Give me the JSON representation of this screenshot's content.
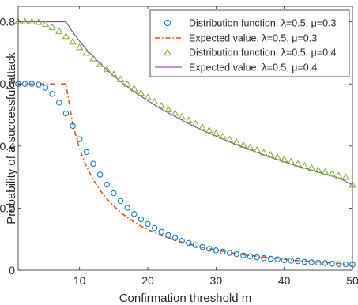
{
  "chart_data": {
    "type": "line",
    "title": "",
    "xlabel": "Confirmation threshold m",
    "ylabel": "Probability of a successful attack",
    "xlim": [
      1,
      50
    ],
    "ylim": [
      0,
      0.85
    ],
    "xticks": [
      10,
      20,
      30,
      40,
      50
    ],
    "yticks": [
      0,
      0.2,
      0.4,
      0.6,
      0.8
    ],
    "xtick_labels": [
      "10",
      "20",
      "30",
      "40",
      "50"
    ],
    "ytick_labels": [
      "0",
      "0.2",
      "0.4",
      "0.6",
      "0.8"
    ],
    "grid": false,
    "legend_position": "top-right",
    "colors": {
      "circle_series": "#0072BD",
      "dashed_series": "#D95319",
      "triangle_series": "#77AC30",
      "purple_series": "#7E2F8E"
    },
    "series": [
      {
        "name": "Distribution function, λ=0.5, μ=0.3",
        "marker": "circle",
        "x": [
          1,
          2,
          3,
          4,
          5,
          6,
          7,
          8,
          9,
          10,
          11,
          12,
          13,
          14,
          15,
          16,
          17,
          18,
          19,
          20,
          21,
          22,
          23,
          24,
          25,
          26,
          27,
          28,
          29,
          30,
          31,
          32,
          33,
          34,
          35,
          36,
          37,
          38,
          39,
          40,
          41,
          42,
          43,
          44,
          45,
          46,
          47,
          48,
          49,
          50
        ],
        "y": [
          0.6,
          0.6,
          0.6,
          0.598,
          0.588,
          0.568,
          0.54,
          0.505,
          0.465,
          0.422,
          0.381,
          0.343,
          0.308,
          0.276,
          0.248,
          0.223,
          0.201,
          0.181,
          0.164,
          0.149,
          0.136,
          0.124,
          0.113,
          0.104,
          0.095,
          0.088,
          0.081,
          0.075,
          0.069,
          0.064,
          0.06,
          0.056,
          0.052,
          0.048,
          0.045,
          0.042,
          0.039,
          0.037,
          0.035,
          0.032,
          0.031,
          0.029,
          0.027,
          0.026,
          0.024,
          0.023,
          0.021,
          0.02,
          0.019,
          0.018
        ]
      },
      {
        "name": "Expected value, λ=0.5, μ=0.3",
        "style": "dashdot",
        "x": [
          1,
          8,
          9,
          10,
          11,
          12,
          13,
          14,
          15,
          16,
          17,
          18,
          19,
          20,
          22,
          24,
          26,
          28,
          30,
          32,
          34,
          36,
          38,
          40,
          42,
          44,
          46,
          48,
          50
        ],
        "y": [
          0.6,
          0.6,
          0.47,
          0.39,
          0.335,
          0.292,
          0.258,
          0.23,
          0.207,
          0.187,
          0.17,
          0.155,
          0.142,
          0.131,
          0.112,
          0.097,
          0.084,
          0.074,
          0.065,
          0.057,
          0.05,
          0.045,
          0.04,
          0.035,
          0.031,
          0.028,
          0.025,
          0.022,
          0.015
        ]
      },
      {
        "name": "Distribution function, λ=0.5, μ=0.4",
        "marker": "triangle",
        "x": [
          1,
          2,
          3,
          4,
          5,
          6,
          7,
          8,
          9,
          10,
          11,
          12,
          13,
          14,
          15,
          16,
          17,
          18,
          19,
          20,
          21,
          22,
          23,
          24,
          25,
          26,
          27,
          28,
          29,
          30,
          31,
          32,
          33,
          34,
          35,
          36,
          37,
          38,
          39,
          40,
          41,
          42,
          43,
          44,
          45,
          46,
          47,
          48,
          49,
          50
        ],
        "y": [
          0.8,
          0.8,
          0.8,
          0.798,
          0.792,
          0.782,
          0.769,
          0.753,
          0.735,
          0.717,
          0.699,
          0.681,
          0.663,
          0.646,
          0.63,
          0.614,
          0.599,
          0.584,
          0.57,
          0.556,
          0.542,
          0.529,
          0.517,
          0.505,
          0.493,
          0.482,
          0.471,
          0.46,
          0.45,
          0.44,
          0.43,
          0.421,
          0.412,
          0.403,
          0.395,
          0.386,
          0.378,
          0.371,
          0.363,
          0.356,
          0.349,
          0.342,
          0.335,
          0.329,
          0.322,
          0.316,
          0.31,
          0.304,
          0.299,
          0.274
        ]
      },
      {
        "name": "Expected value, λ=0.5, μ=0.4",
        "style": "solid",
        "x": [
          1,
          8,
          9,
          10,
          11,
          12,
          13,
          14,
          15,
          16,
          17,
          18,
          19,
          20,
          22,
          24,
          26,
          28,
          30,
          32,
          34,
          36,
          38,
          40,
          42,
          44,
          46,
          48,
          50
        ],
        "y": [
          0.8,
          0.8,
          0.767,
          0.738,
          0.712,
          0.688,
          0.666,
          0.645,
          0.626,
          0.608,
          0.591,
          0.575,
          0.56,
          0.546,
          0.519,
          0.495,
          0.472,
          0.451,
          0.432,
          0.413,
          0.396,
          0.38,
          0.364,
          0.349,
          0.335,
          0.322,
          0.309,
          0.297,
          0.275
        ]
      }
    ]
  }
}
